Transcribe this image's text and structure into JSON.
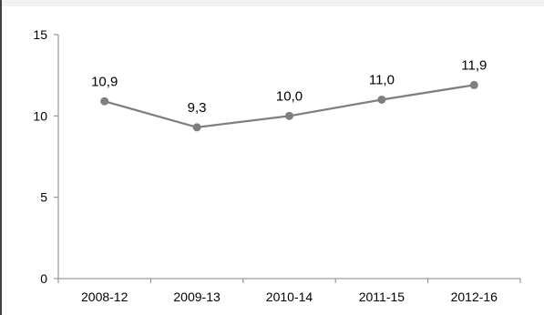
{
  "chart_data": {
    "type": "line",
    "categories": [
      "2008-12",
      "2009-13",
      "2010-14",
      "2011-15",
      "2012-16"
    ],
    "series": [
      {
        "values": [
          10.9,
          9.3,
          10.0,
          11.0,
          11.9
        ],
        "labels": [
          "10,9",
          "9,3",
          "10,0",
          "11,0",
          "11,9"
        ]
      }
    ],
    "title": "",
    "xlabel": "",
    "ylabel": "",
    "ylim": [
      0,
      15
    ],
    "yticks": [
      "0",
      "5",
      "10",
      "15"
    ],
    "ytick_values": [
      0,
      5,
      10,
      15
    ],
    "grid": false,
    "legend": "none",
    "colors": {
      "series": "#7f7f7f",
      "marker": "#7f7f7f",
      "axis": "#868686",
      "frame_top": "#f2f2f2",
      "frame_side": "#404040"
    }
  }
}
